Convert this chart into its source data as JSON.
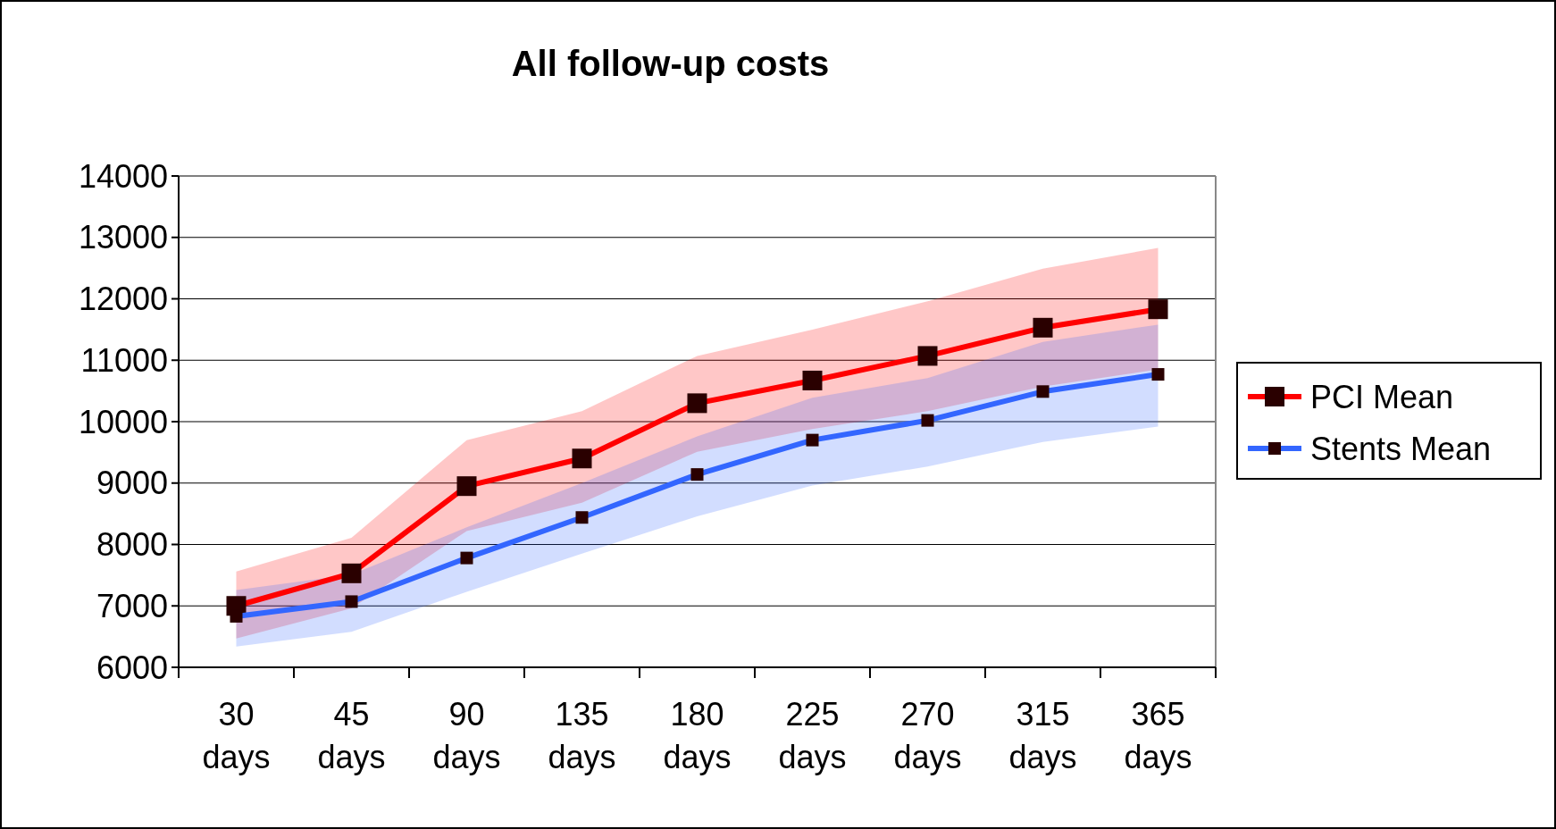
{
  "chart_data": {
    "type": "line",
    "title": "All follow-up costs",
    "categories": [
      "30 days",
      "45 days",
      "90 days",
      "135 days",
      "180 days",
      "225 days",
      "270 days",
      "315 days",
      "365 days"
    ],
    "series": [
      {
        "name": "PCI Mean",
        "color": "#ff0000",
        "values": [
          7000,
          7530,
          8950,
          9400,
          10300,
          10670,
          11070,
          11530,
          11830
        ],
        "lower": [
          6470,
          6960,
          8220,
          8680,
          9510,
          9880,
          10170,
          10570,
          10850
        ],
        "upper": [
          7560,
          8110,
          9700,
          10170,
          11070,
          11500,
          11960,
          12490,
          12830
        ]
      },
      {
        "name": "Stents Mean",
        "color": "#3366ff",
        "values": [
          6830,
          7070,
          7780,
          8440,
          9140,
          9700,
          10020,
          10490,
          10770
        ],
        "lower": [
          6340,
          6580,
          7230,
          7850,
          8460,
          8960,
          9270,
          9670,
          9920
        ],
        "upper": [
          7260,
          7510,
          8280,
          9000,
          9760,
          10390,
          10710,
          11300,
          11580
        ]
      }
    ],
    "ylim": [
      6000,
      14000
    ],
    "yticks": [
      6000,
      7000,
      8000,
      9000,
      10000,
      11000,
      12000,
      13000,
      14000
    ],
    "grid": "y",
    "legend": "right",
    "marker": "square",
    "line_style": "solid"
  }
}
